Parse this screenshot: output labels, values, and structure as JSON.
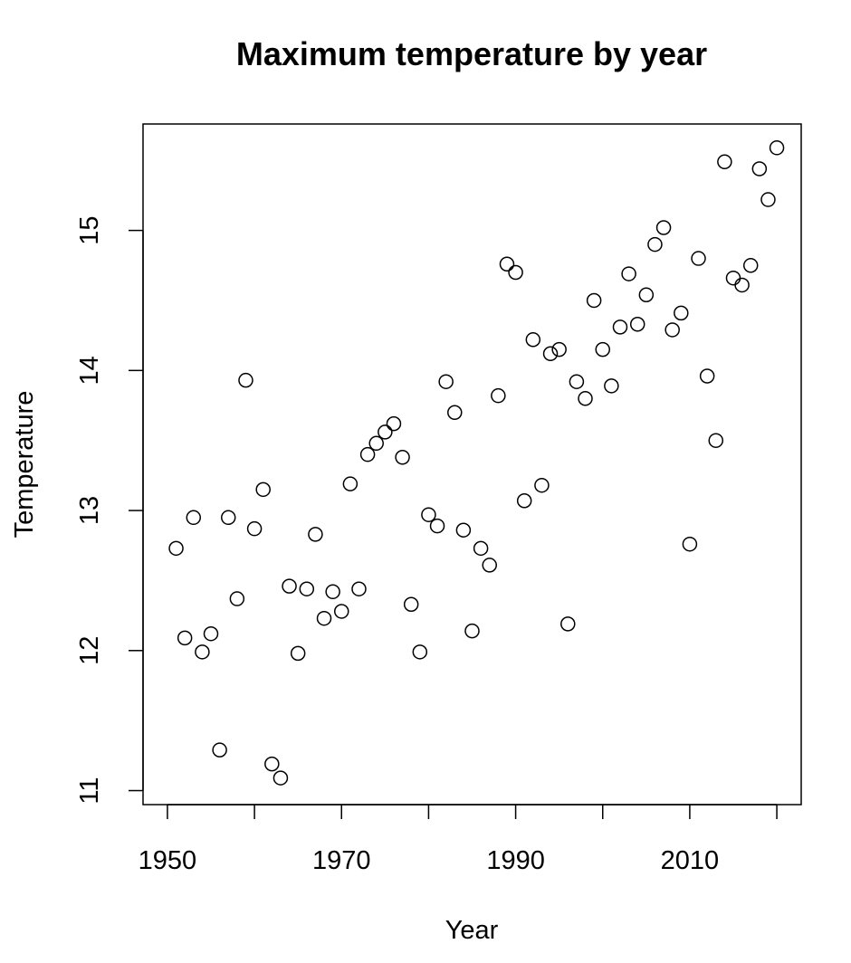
{
  "chart_data": {
    "type": "scatter",
    "title": "Maximum temperature by year",
    "xlabel": "Year",
    "ylabel": "Temperature",
    "xlim": [
      1947.2,
      2022.8
    ],
    "ylim": [
      10.9,
      15.76
    ],
    "x_ticks": [
      1950,
      1960,
      1970,
      1980,
      1990,
      2000,
      2010,
      2020
    ],
    "x_tick_labels": [
      "1950",
      "1970",
      "1990",
      "2010"
    ],
    "y_ticks": [
      11,
      12,
      13,
      14,
      15
    ],
    "y_tick_labels": [
      "11",
      "12",
      "13",
      "14",
      "15"
    ],
    "grid": false,
    "legend": "none",
    "marker": "open-circle",
    "color": "#000000",
    "points": [
      {
        "x": 1951,
        "y": 12.73
      },
      {
        "x": 1952,
        "y": 12.09
      },
      {
        "x": 1953,
        "y": 12.95
      },
      {
        "x": 1954,
        "y": 11.99
      },
      {
        "x": 1955,
        "y": 12.12
      },
      {
        "x": 1956,
        "y": 11.29
      },
      {
        "x": 1957,
        "y": 12.95
      },
      {
        "x": 1958,
        "y": 12.37
      },
      {
        "x": 1959,
        "y": 13.93
      },
      {
        "x": 1960,
        "y": 12.87
      },
      {
        "x": 1961,
        "y": 13.15
      },
      {
        "x": 1962,
        "y": 11.19
      },
      {
        "x": 1963,
        "y": 11.09
      },
      {
        "x": 1964,
        "y": 12.46
      },
      {
        "x": 1965,
        "y": 11.98
      },
      {
        "x": 1966,
        "y": 12.44
      },
      {
        "x": 1967,
        "y": 12.83
      },
      {
        "x": 1968,
        "y": 12.23
      },
      {
        "x": 1969,
        "y": 12.42
      },
      {
        "x": 1970,
        "y": 12.28
      },
      {
        "x": 1971,
        "y": 13.19
      },
      {
        "x": 1972,
        "y": 12.44
      },
      {
        "x": 1973,
        "y": 13.4
      },
      {
        "x": 1974,
        "y": 13.48
      },
      {
        "x": 1975,
        "y": 13.56
      },
      {
        "x": 1976,
        "y": 13.62
      },
      {
        "x": 1977,
        "y": 13.38
      },
      {
        "x": 1978,
        "y": 12.33
      },
      {
        "x": 1979,
        "y": 11.99
      },
      {
        "x": 1980,
        "y": 12.97
      },
      {
        "x": 1981,
        "y": 12.89
      },
      {
        "x": 1982,
        "y": 13.92
      },
      {
        "x": 1983,
        "y": 13.7
      },
      {
        "x": 1984,
        "y": 12.86
      },
      {
        "x": 1985,
        "y": 12.14
      },
      {
        "x": 1986,
        "y": 12.73
      },
      {
        "x": 1987,
        "y": 12.61
      },
      {
        "x": 1988,
        "y": 13.82
      },
      {
        "x": 1989,
        "y": 14.76
      },
      {
        "x": 1990,
        "y": 14.7
      },
      {
        "x": 1991,
        "y": 13.07
      },
      {
        "x": 1992,
        "y": 14.22
      },
      {
        "x": 1993,
        "y": 13.18
      },
      {
        "x": 1994,
        "y": 14.12
      },
      {
        "x": 1995,
        "y": 14.15
      },
      {
        "x": 1996,
        "y": 12.19
      },
      {
        "x": 1997,
        "y": 13.92
      },
      {
        "x": 1998,
        "y": 13.8
      },
      {
        "x": 1999,
        "y": 14.5
      },
      {
        "x": 2000,
        "y": 14.15
      },
      {
        "x": 2001,
        "y": 13.89
      },
      {
        "x": 2002,
        "y": 14.31
      },
      {
        "x": 2003,
        "y": 14.69
      },
      {
        "x": 2004,
        "y": 14.33
      },
      {
        "x": 2005,
        "y": 14.54
      },
      {
        "x": 2006,
        "y": 14.9
      },
      {
        "x": 2007,
        "y": 15.02
      },
      {
        "x": 2008,
        "y": 14.29
      },
      {
        "x": 2009,
        "y": 14.41
      },
      {
        "x": 2010,
        "y": 12.76
      },
      {
        "x": 2011,
        "y": 14.8
      },
      {
        "x": 2012,
        "y": 13.96
      },
      {
        "x": 2013,
        "y": 13.5
      },
      {
        "x": 2014,
        "y": 15.49
      },
      {
        "x": 2015,
        "y": 14.66
      },
      {
        "x": 2016,
        "y": 14.61
      },
      {
        "x": 2017,
        "y": 14.75
      },
      {
        "x": 2018,
        "y": 15.44
      },
      {
        "x": 2019,
        "y": 15.22
      },
      {
        "x": 2020,
        "y": 15.59
      }
    ]
  }
}
